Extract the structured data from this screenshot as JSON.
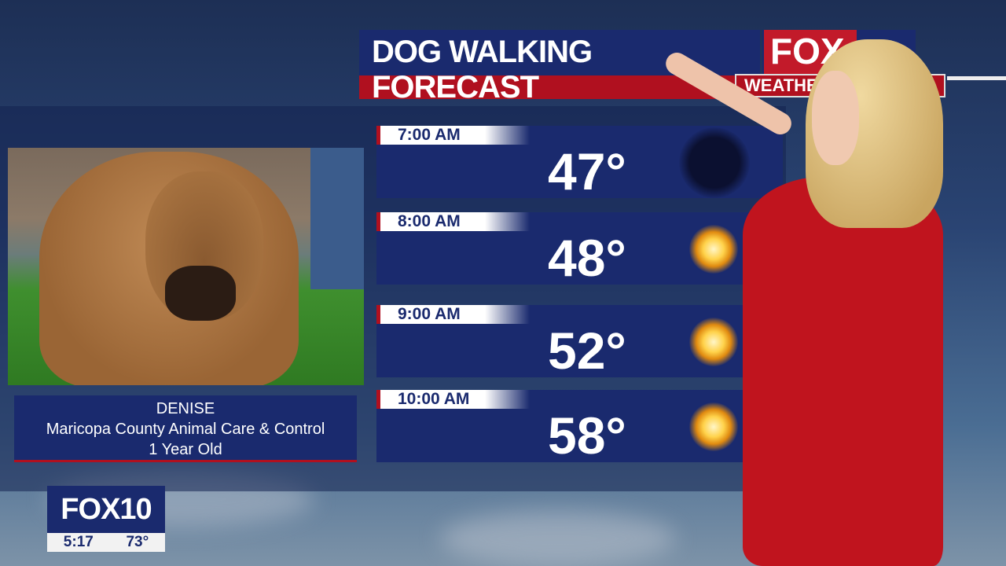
{
  "header": {
    "title": "DOG WALKING FORECAST",
    "logo_text": "FOX",
    "logo_subtext": "WEATHE"
  },
  "dog": {
    "name": "DENISE",
    "shelter": "Maricopa County Animal Care & Control",
    "age": "1 Year Old"
  },
  "forecast": [
    {
      "time": "7:00 AM",
      "temp": "47°",
      "icon": "clear-night-icon"
    },
    {
      "time": "8:00 AM",
      "temp": "48°",
      "icon": "sun-icon"
    },
    {
      "time": "9:00 AM",
      "temp": "52°",
      "icon": "sun-icon"
    },
    {
      "time": "10:00 AM",
      "temp": "58°",
      "icon": "sun-icon"
    }
  ],
  "station_bug": {
    "logo": "FOX10",
    "time": "5:17",
    "temp": "73°"
  },
  "colors": {
    "navy": "#1a2a6e",
    "red": "#b0101f"
  }
}
